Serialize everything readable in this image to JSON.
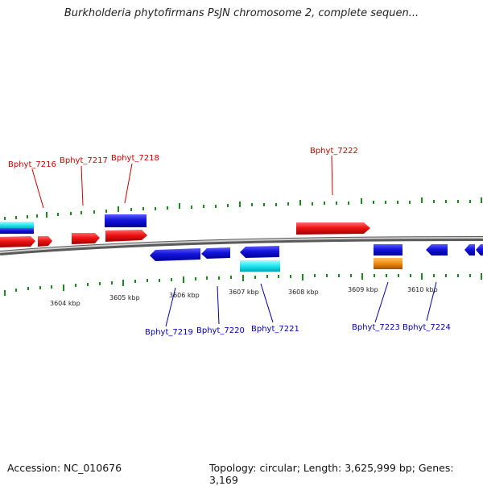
{
  "title": "Burkholderia phytofirmans PsJN chromosome 2, complete sequen...",
  "footer": {
    "accession": "Accession: NC_010676",
    "topology": "Topology: circular; Length: 3,625,999 bp; Genes: 3,169"
  },
  "kbp_labels": [
    "3604 kbp",
    "3605 kbp",
    "3606 kbp",
    "3607 kbp",
    "3608 kbp",
    "3609 kbp",
    "3610 kbp"
  ],
  "top_gene_labels": [
    "Bphyt_7216",
    "Bphyt_7217",
    "Bphyt_7218",
    "Bphyt_7222"
  ],
  "bottom_gene_labels": [
    "Bphyt_7219",
    "Bphyt_7220",
    "Bphyt_7221",
    "Bphyt_7223",
    "Bphyt_7224"
  ],
  "colors": {
    "forward_gene": "#e81010",
    "reverse_gene": "#1818d8",
    "cyan_feature": "#20e8f0",
    "orange_feature": "#f08a10",
    "backbone": "#8a8a8a",
    "tick": "#1c8a1c",
    "top_label": "#d00000",
    "bottom_label": "#0000b0"
  }
}
